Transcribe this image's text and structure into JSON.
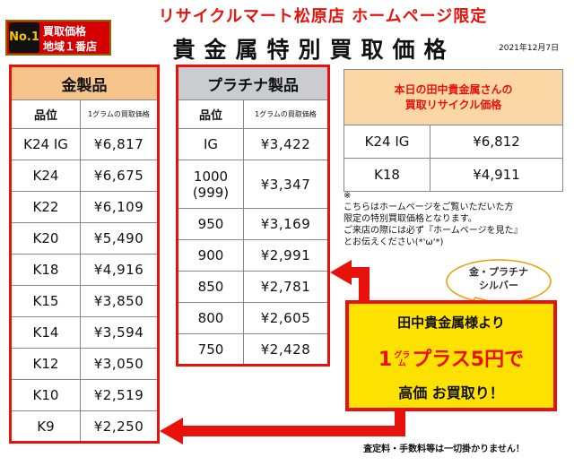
{
  "header": {
    "store_title": "リサイクルマート松原店 ホームページ限定",
    "badge_rank": "No.1",
    "badge_line1": "買取価格",
    "badge_line2": "地域１番店",
    "heading": "貴金属特別買取価格",
    "date": "2021年12月7日"
  },
  "gold_table": {
    "title": "金製品",
    "col1": "品位",
    "col2": "1グラムの買取価格",
    "rows": [
      {
        "grade": "K24 IG",
        "price": "¥6,817"
      },
      {
        "grade": "K24",
        "price": "¥6,675"
      },
      {
        "grade": "K22",
        "price": "¥6,109"
      },
      {
        "grade": "K20",
        "price": "¥5,490"
      },
      {
        "grade": "K18",
        "price": "¥4,916"
      },
      {
        "grade": "K15",
        "price": "¥3,850"
      },
      {
        "grade": "K14",
        "price": "¥3,594"
      },
      {
        "grade": "K12",
        "price": "¥3,050"
      },
      {
        "grade": "K10",
        "price": "¥2,519"
      },
      {
        "grade": "K9",
        "price": "¥2,250"
      }
    ]
  },
  "platinum_table": {
    "title": "プラチナ製品",
    "col1": "品位",
    "col2": "1グラムの買取価格",
    "rows": [
      {
        "grade": "IG",
        "price": "¥3,422"
      },
      {
        "grade": "1000\n(999)",
        "price": "¥3,347"
      },
      {
        "grade": "950",
        "price": "¥3,169"
      },
      {
        "grade": "900",
        "price": "¥2,991"
      },
      {
        "grade": "850",
        "price": "¥2,781"
      },
      {
        "grade": "800",
        "price": "¥2,605"
      },
      {
        "grade": "750",
        "price": "¥2,428"
      }
    ]
  },
  "tanaka": {
    "title_line1": "本日の田中貴金属さんの",
    "title_line2": "買取リサイクル価格",
    "rows": [
      {
        "grade": "K24 IG",
        "price": "¥6,812"
      },
      {
        "grade": "K18",
        "price": "¥4,911"
      }
    ]
  },
  "note": {
    "mark": "※",
    "text1": "こちらはホームページをご覧いただいた方",
    "text2": "限定の特別買取価格となります。",
    "text3": "ご来店の際には必ず『ホームページを見た』",
    "text4": "とお伝えください(*'ω'*)"
  },
  "bubble": {
    "line1": "金・プラチナ",
    "line2": "シルバー"
  },
  "promo": {
    "line1": "田中貴金属様より",
    "line2_prefix": "1",
    "line2_unit_top": "グラ",
    "line2_unit_bottom": "ム",
    "line2_rest": "プラス5円で",
    "line3": "高価 お買取り！"
  },
  "footer": {
    "note": "査定料・手数料等は一切掛かりません！"
  },
  "colors": {
    "accent_red": "#e8120c",
    "gold_header": "#f5c48a",
    "platinum_header": "#cbcbd2",
    "promo_yellow": "#fde100"
  }
}
